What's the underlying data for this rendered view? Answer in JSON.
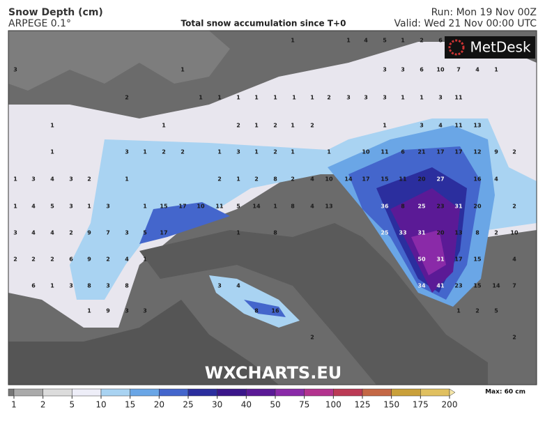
{
  "header": {
    "title": "Snow Depth (cm)",
    "model": "ARPEGE 0.1°",
    "subtitle": "Total snow accumulation since T+0",
    "run": "Run: Mon 19 Nov 00Z",
    "valid": "Valid: Wed 21 Nov 00:00 UTC"
  },
  "logo": "MetDesk",
  "watermark": "WXCHARTS.EU",
  "map": {
    "rows": [
      [
        1,
        1,
        4,
        5,
        1,
        2,
        6
      ],
      [
        3,
        1,
        3,
        3,
        6,
        10,
        7,
        4,
        1
      ],
      [
        2,
        1,
        1,
        1,
        1,
        1,
        1,
        1,
        2,
        3,
        3,
        3,
        1,
        1,
        3,
        11
      ],
      [
        1,
        1,
        2,
        1,
        2,
        1,
        2,
        1,
        3,
        4,
        11,
        13
      ],
      [
        1,
        3,
        1,
        2,
        2,
        1,
        3,
        1,
        2,
        1,
        1,
        10,
        11,
        6,
        21,
        17,
        17,
        12,
        9,
        2
      ],
      [
        1,
        3,
        4,
        3,
        2,
        1,
        2,
        1,
        2,
        8,
        2,
        4,
        10,
        14,
        17,
        15,
        11,
        20,
        27,
        16,
        4
      ],
      [
        1,
        4,
        5,
        3,
        1,
        3,
        1,
        15,
        17,
        10,
        11,
        5,
        14,
        1,
        8,
        4,
        13,
        36,
        8,
        25,
        23,
        31,
        20,
        2
      ],
      [
        3,
        4,
        4,
        2,
        9,
        7,
        3,
        5,
        17,
        1,
        8,
        25,
        33,
        31,
        20,
        13,
        8,
        2,
        10
      ],
      [
        2,
        2,
        2,
        6,
        9,
        2,
        4,
        1,
        50,
        31,
        17,
        15,
        4
      ],
      [
        6,
        1,
        3,
        8,
        3,
        8,
        3,
        4,
        34,
        41,
        23,
        15,
        14,
        7
      ],
      [
        1,
        9,
        3,
        3,
        8,
        16,
        1,
        2,
        5
      ],
      [
        2,
        2
      ]
    ]
  },
  "legend": {
    "ticks": [
      1,
      2,
      5,
      10,
      15,
      20,
      25,
      30,
      40,
      50,
      75,
      100,
      125,
      150,
      175,
      200
    ],
    "colors": [
      "#777777",
      "#aaaaaa",
      "#dcdcdc",
      "#eeeef8",
      "#a9d3f2",
      "#6aa6e6",
      "#4466cc",
      "#2b2e9e",
      "#3a168a",
      "#5b1a96",
      "#8a2aa8",
      "#b3338e",
      "#bb3a55",
      "#c46845",
      "#c9a03a",
      "#e0c060",
      "#f5e6a8"
    ],
    "max": "Max: 60 cm"
  }
}
